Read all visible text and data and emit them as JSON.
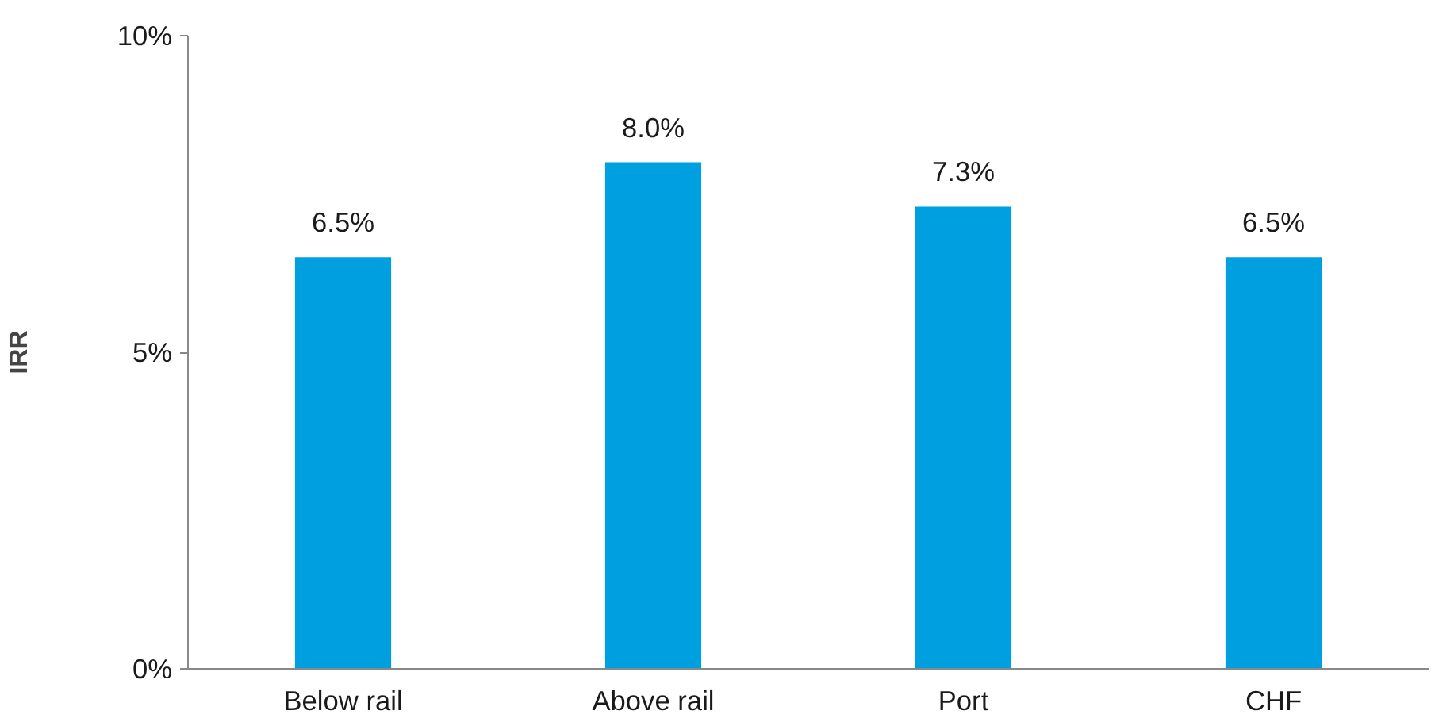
{
  "chart_data": {
    "type": "bar",
    "ylabel": "IRR",
    "categories": [
      "Below rail",
      "Above rail",
      "Port",
      "CHF"
    ],
    "values": [
      6.5,
      8.0,
      7.3,
      6.5
    ],
    "value_labels": [
      "6.5%",
      "8.0%",
      "7.3%",
      "6.5%"
    ],
    "color": "#009fe0",
    "ylim": [
      0,
      10
    ],
    "yticks": [
      {
        "value": 0,
        "label": "0%"
      },
      {
        "value": 5,
        "label": "5%"
      },
      {
        "value": 10,
        "label": "10%"
      }
    ],
    "grid": false
  }
}
